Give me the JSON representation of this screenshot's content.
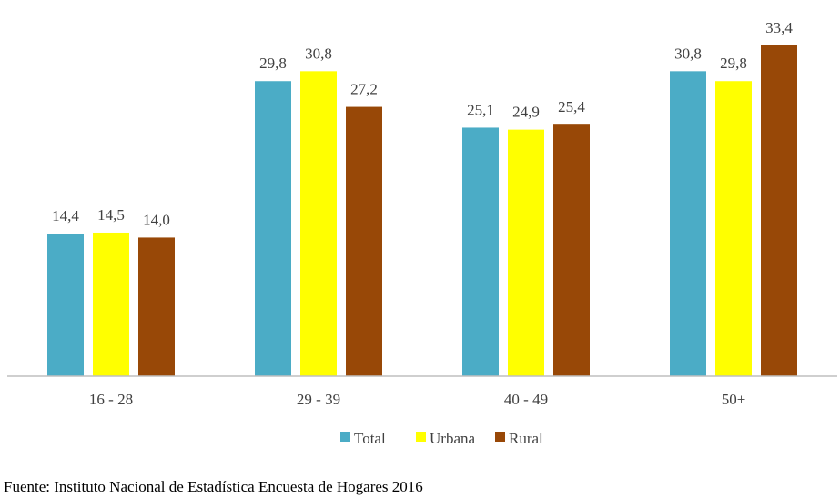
{
  "chart_data": {
    "type": "bar",
    "categories": [
      "16 - 28",
      "29 - 39",
      "40 - 49",
      "50+"
    ],
    "series": [
      {
        "name": "Total",
        "color": "#4BACC6",
        "values": [
          14.4,
          29.8,
          25.1,
          30.8
        ],
        "labels": [
          "14,4",
          "29,8",
          "25,1",
          "30,8"
        ]
      },
      {
        "name": "Urbana",
        "color": "#FFFF00",
        "values": [
          14.5,
          30.8,
          24.9,
          29.8
        ],
        "labels": [
          "14,5",
          "30,8",
          "24,9",
          "29,8"
        ]
      },
      {
        "name": "Rural",
        "color": "#984807",
        "values": [
          14.0,
          27.2,
          25.4,
          33.4
        ],
        "labels": [
          "14,0",
          "27,2",
          "25,4",
          "33,4"
        ]
      }
    ],
    "title": "",
    "xlabel": "",
    "ylabel": "",
    "ylim": [
      0,
      33.4
    ],
    "grid": false,
    "legend_position": "bottom"
  },
  "source": "Fuente: Instituto Nacional de Estadística Encuesta de Hogares 2016"
}
